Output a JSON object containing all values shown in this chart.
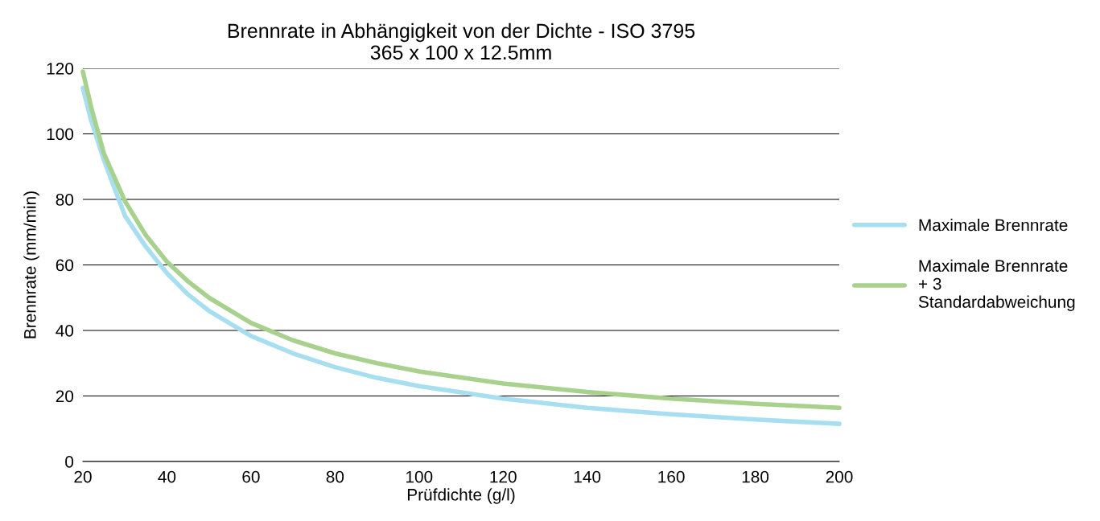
{
  "chart_data": {
    "type": "line",
    "title": "Brennrate in Abhängigkeit von der Dichte - ISO 3795\n365 x 100 x 12.5mm",
    "xlabel": "Prüfdichte (g/l)",
    "ylabel": "Brennrate (mm/min)",
    "xlim": [
      20,
      200
    ],
    "xticks": [
      20,
      40,
      60,
      80,
      100,
      120,
      140,
      160,
      180,
      200
    ],
    "ylim": [
      0,
      120
    ],
    "yticks": [
      0,
      20,
      40,
      60,
      80,
      100,
      120
    ],
    "grid": "y",
    "legend": "right",
    "marker": "none",
    "line_style": "solid",
    "series": [
      {
        "name": "Maximale Brennrate",
        "color": "#a8dff0",
        "x": [
          20,
          22,
          25,
          30,
          35,
          40,
          45,
          50,
          60,
          70,
          80,
          90,
          100,
          120,
          140,
          160,
          180,
          200
        ],
        "values": [
          114,
          104,
          92,
          75,
          65.5,
          57.5,
          51,
          46,
          38.3,
          33,
          28.8,
          25.5,
          23,
          19.2,
          16.4,
          14.4,
          12.8,
          11.5
        ]
      },
      {
        "name": "Maximale Brennrate\n+ 3\nStandardabweichung",
        "color": "#a9d18e",
        "x": [
          20,
          22,
          25,
          30,
          35,
          40,
          45,
          50,
          60,
          70,
          80,
          90,
          100,
          120,
          140,
          160,
          180,
          200
        ],
        "values": [
          119,
          108,
          94,
          79.5,
          69,
          61,
          55,
          50,
          42.3,
          37,
          33,
          30,
          27.5,
          23.8,
          21.2,
          19.2,
          17.6,
          16.4
        ]
      }
    ]
  }
}
